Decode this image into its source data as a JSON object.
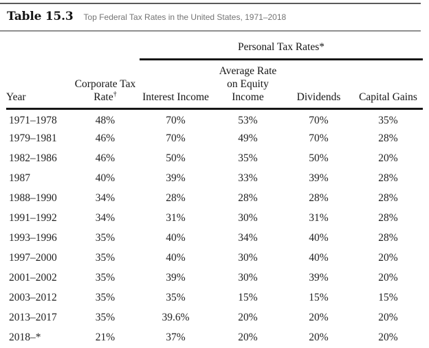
{
  "title": {
    "label": "Table 15.3",
    "subtitle": "Top Federal Tax Rates in the United States, 1971–2018"
  },
  "table": {
    "group_header": "Personal Tax Rates*",
    "columns": {
      "year": "Year",
      "corporate_line1": "Corporate Tax",
      "corporate_line2": "Rate",
      "corporate_footnote": "†",
      "interest": "Interest Income",
      "equity_line1": "Average Rate",
      "equity_line2": "on Equity Income",
      "dividends": "Dividends",
      "capital_gains": "Capital Gains"
    },
    "rows": [
      {
        "year": "1971–1978",
        "values": [
          "48%",
          "70%",
          "53%",
          "70%",
          "35%"
        ]
      },
      {
        "year": "1979–1981",
        "values": [
          "46%",
          "70%",
          "49%",
          "70%",
          "28%"
        ]
      },
      {
        "year": "1982–1986",
        "values": [
          "46%",
          "50%",
          "35%",
          "50%",
          "20%"
        ]
      },
      {
        "year": "1987",
        "values": [
          "40%",
          "39%",
          "33%",
          "39%",
          "28%"
        ]
      },
      {
        "year": "1988–1990",
        "values": [
          "34%",
          "28%",
          "28%",
          "28%",
          "28%"
        ]
      },
      {
        "year": "1991–1992",
        "values": [
          "34%",
          "31%",
          "30%",
          "31%",
          "28%"
        ]
      },
      {
        "year": "1993–1996",
        "values": [
          "35%",
          "40%",
          "34%",
          "40%",
          "28%"
        ]
      },
      {
        "year": "1997–2000",
        "values": [
          "35%",
          "40%",
          "30%",
          "40%",
          "20%"
        ]
      },
      {
        "year": "2001–2002",
        "values": [
          "35%",
          "39%",
          "30%",
          "39%",
          "20%"
        ]
      },
      {
        "year": "2003–2012",
        "values": [
          "35%",
          "35%",
          "15%",
          "15%",
          "15%"
        ]
      },
      {
        "year": "2013–2017",
        "values": [
          "35%",
          "39.6%",
          "20%",
          "20%",
          "20%"
        ]
      },
      {
        "year": "2018–*",
        "values": [
          "21%",
          "37%",
          "20%",
          "20%",
          "20%"
        ]
      }
    ]
  },
  "colors": {
    "rule_dark": "#161616",
    "title_rule_top": "#5a5a5a",
    "title_rule_bottom": "#8e8e8e",
    "subtitle_gray": "#737373",
    "text": "#1c1c1c"
  }
}
